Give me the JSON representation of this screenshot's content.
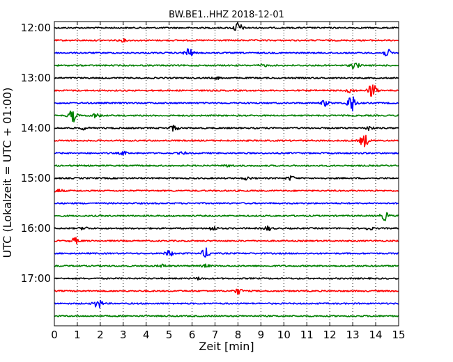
{
  "chart_data": {
    "type": "line",
    "title": "BW.BE1..HHZ 2018-12-01",
    "xlabel": "Zeit  [min]",
    "ylabel": "UTC (Lokalzeit = UTC + 01:00)",
    "xlim": [
      0,
      15
    ],
    "x_ticks": [
      "0",
      "1",
      "2",
      "3",
      "4",
      "5",
      "6",
      "7",
      "8",
      "9",
      "10",
      "11",
      "12",
      "13",
      "14",
      "15"
    ],
    "y_tick_labels": [
      "12:00",
      "13:00",
      "14:00",
      "15:00",
      "16:00",
      "17:00"
    ],
    "grid": "vertical dotted",
    "legend": "none",
    "colors": [
      "#000000",
      "#ff0000",
      "#0000ff",
      "#008000"
    ],
    "traces": [
      {
        "start": "12:00",
        "color": "#000000",
        "events": [
          {
            "x": 8.0,
            "amp": 8
          }
        ]
      },
      {
        "start": "12:15",
        "color": "#ff0000",
        "events": [
          {
            "x": 3.0,
            "amp": 1.5
          }
        ]
      },
      {
        "start": "12:30",
        "color": "#0000ff",
        "events": [
          {
            "x": 5.85,
            "amp": 7
          },
          {
            "x": 14.5,
            "amp": 5
          }
        ]
      },
      {
        "start": "12:45",
        "color": "#008000",
        "events": [
          {
            "x": 13.1,
            "amp": 5
          },
          {
            "x": 9.1,
            "amp": 1.5
          }
        ]
      },
      {
        "start": "13:00",
        "color": "#000000",
        "events": [
          {
            "x": 7.1,
            "amp": 1.5
          }
        ]
      },
      {
        "start": "13:15",
        "color": "#ff0000",
        "events": [
          {
            "x": 13.85,
            "amp": 11
          },
          {
            "x": 12.9,
            "amp": 3
          }
        ]
      },
      {
        "start": "13:30",
        "color": "#0000ff",
        "events": [
          {
            "x": 12.95,
            "amp": 13
          },
          {
            "x": 11.8,
            "amp": 4
          }
        ]
      },
      {
        "start": "13:45",
        "color": "#008000",
        "events": [
          {
            "x": 0.8,
            "amp": 9
          },
          {
            "x": 1.8,
            "amp": 3
          }
        ]
      },
      {
        "start": "14:00",
        "color": "#000000",
        "events": [
          {
            "x": 5.2,
            "amp": 4
          },
          {
            "x": 13.7,
            "amp": 3
          },
          {
            "x": 1.3,
            "amp": 2
          }
        ]
      },
      {
        "start": "14:15",
        "color": "#ff0000",
        "events": [
          {
            "x": 13.5,
            "amp": 9
          }
        ]
      },
      {
        "start": "14:30",
        "color": "#0000ff",
        "events": [
          {
            "x": 3.0,
            "amp": 2
          },
          {
            "x": 5.6,
            "amp": 1.5
          }
        ]
      },
      {
        "start": "14:45",
        "color": "#008000",
        "events": [
          {
            "x": 7.6,
            "amp": 1.5
          }
        ]
      },
      {
        "start": "15:00",
        "color": "#000000",
        "events": [
          {
            "x": 10.3,
            "amp": 3
          },
          {
            "x": 8.4,
            "amp": 2
          }
        ]
      },
      {
        "start": "15:15",
        "color": "#ff0000",
        "events": [
          {
            "x": 0.2,
            "amp": 2
          }
        ]
      },
      {
        "start": "15:30",
        "color": "#0000ff",
        "events": []
      },
      {
        "start": "15:45",
        "color": "#008000",
        "events": [
          {
            "x": 14.4,
            "amp": 6
          }
        ]
      },
      {
        "start": "16:00",
        "color": "#000000",
        "events": [
          {
            "x": 6.9,
            "amp": 3
          },
          {
            "x": 9.3,
            "amp": 3
          },
          {
            "x": 1.3,
            "amp": 2
          },
          {
            "x": 13.7,
            "amp": 2
          }
        ]
      },
      {
        "start": "16:15",
        "color": "#ff0000",
        "events": [
          {
            "x": 0.9,
            "amp": 4
          }
        ]
      },
      {
        "start": "16:30",
        "color": "#0000ff",
        "events": [
          {
            "x": 6.6,
            "amp": 7
          },
          {
            "x": 5.0,
            "amp": 4
          }
        ]
      },
      {
        "start": "16:45",
        "color": "#008000",
        "events": [
          {
            "x": 4.7,
            "amp": 2
          },
          {
            "x": 6.6,
            "amp": 2
          }
        ]
      },
      {
        "start": "17:00",
        "color": "#000000",
        "events": [
          {
            "x": 6.3,
            "amp": 1.5
          }
        ]
      },
      {
        "start": "17:15",
        "color": "#ff0000",
        "events": [
          {
            "x": 8.0,
            "amp": 4
          }
        ]
      },
      {
        "start": "17:30",
        "color": "#0000ff",
        "events": [
          {
            "x": 1.9,
            "amp": 7
          }
        ]
      },
      {
        "start": "17:45",
        "color": "#008000",
        "events": []
      }
    ]
  }
}
